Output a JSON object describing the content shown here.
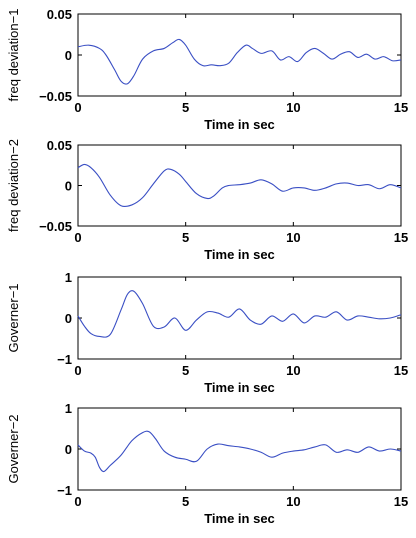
{
  "chart_data": [
    {
      "type": "line",
      "ylabel": "freq deviation−1",
      "xlabel": "Time in sec",
      "xlim": [
        0,
        15
      ],
      "ylim": [
        -0.05,
        0.05
      ],
      "xticks": [
        0,
        5,
        10,
        15
      ],
      "xtick_labels": [
        "0",
        "5",
        "10",
        "15"
      ],
      "yticks": [
        -0.05,
        0,
        0.05
      ],
      "ytick_labels": [
        "−0.05",
        "0",
        "0.05"
      ],
      "grid": false,
      "series": [
        {
          "color": "#3a4fc4",
          "x": [
            0,
            0.5,
            1.0,
            1.3,
            1.7,
            2.0,
            2.3,
            2.6,
            3.0,
            3.5,
            4.0,
            4.4,
            4.7,
            5.0,
            5.4,
            5.8,
            6.2,
            6.6,
            7.0,
            7.4,
            7.8,
            8.1,
            8.5,
            9.0,
            9.4,
            9.8,
            10.2,
            10.6,
            11.0,
            11.4,
            11.8,
            12.2,
            12.6,
            13.0,
            13.4,
            13.8,
            14.2,
            14.6,
            15.0
          ],
          "y": [
            0.01,
            0.012,
            0.008,
            0.0,
            -0.018,
            -0.032,
            -0.035,
            -0.025,
            -0.005,
            0.005,
            0.008,
            0.015,
            0.019,
            0.012,
            -0.005,
            -0.013,
            -0.012,
            -0.013,
            -0.01,
            0.003,
            0.012,
            0.008,
            0.002,
            0.005,
            -0.006,
            -0.002,
            -0.008,
            0.003,
            0.008,
            0.002,
            -0.005,
            0.001,
            0.004,
            -0.003,
            0.001,
            -0.005,
            -0.002,
            -0.007,
            -0.006
          ]
        }
      ]
    },
    {
      "type": "line",
      "ylabel": "freq deviation−2",
      "xlabel": "Time in sec",
      "xlim": [
        0,
        15
      ],
      "ylim": [
        -0.05,
        0.05
      ],
      "xticks": [
        0,
        5,
        10,
        15
      ],
      "xtick_labels": [
        "0",
        "5",
        "10",
        "15"
      ],
      "yticks": [
        -0.05,
        0,
        0.05
      ],
      "ytick_labels": [
        "−0.05",
        "0",
        "0.05"
      ],
      "grid": false,
      "series": [
        {
          "color": "#3a4fc4",
          "x": [
            0,
            0.3,
            0.6,
            1.0,
            1.5,
            2.0,
            2.5,
            3.0,
            3.5,
            4.0,
            4.3,
            4.7,
            5.0,
            5.5,
            6.0,
            6.3,
            6.7,
            7.0,
            7.5,
            8.0,
            8.5,
            9.0,
            9.5,
            10.0,
            10.5,
            11.0,
            11.5,
            12.0,
            12.5,
            13.0,
            13.5,
            14.0,
            14.5,
            15.0
          ],
          "y": [
            0.022,
            0.026,
            0.022,
            0.01,
            -0.012,
            -0.025,
            -0.024,
            -0.015,
            0.002,
            0.018,
            0.02,
            0.014,
            0.005,
            -0.01,
            -0.016,
            -0.013,
            -0.003,
            0.0,
            0.001,
            0.003,
            0.007,
            0.002,
            -0.007,
            -0.003,
            -0.003,
            -0.006,
            -0.003,
            0.002,
            0.003,
            0.0,
            0.001,
            -0.004,
            0.001,
            -0.003
          ]
        }
      ]
    },
    {
      "type": "line",
      "ylabel": "Governer−1",
      "xlabel": "Time in sec",
      "xlim": [
        0,
        15
      ],
      "ylim": [
        -1,
        1
      ],
      "xticks": [
        0,
        5,
        10,
        15
      ],
      "xtick_labels": [
        "0",
        "5",
        "10",
        "15"
      ],
      "yticks": [
        -1,
        0,
        1
      ],
      "ytick_labels": [
        "−1",
        "0",
        "1"
      ],
      "grid": false,
      "series": [
        {
          "color": "#3a4fc4",
          "x": [
            0,
            0.3,
            0.6,
            1.0,
            1.5,
            2.0,
            2.3,
            2.6,
            3.0,
            3.5,
            4.0,
            4.5,
            5.0,
            5.5,
            6.0,
            6.5,
            7.0,
            7.5,
            8.0,
            8.5,
            9.0,
            9.5,
            10.0,
            10.5,
            11.0,
            11.5,
            12.0,
            12.5,
            13.0,
            13.5,
            14.0,
            14.5,
            15.0
          ],
          "y": [
            0.05,
            -0.2,
            -0.38,
            -0.45,
            -0.4,
            0.2,
            0.58,
            0.65,
            0.35,
            -0.2,
            -0.22,
            0.0,
            -0.3,
            -0.05,
            0.15,
            0.12,
            0.02,
            0.22,
            -0.05,
            -0.15,
            0.05,
            -0.08,
            0.1,
            -0.12,
            0.05,
            0.02,
            0.15,
            -0.05,
            0.05,
            0.02,
            -0.02,
            0.0,
            0.08
          ]
        }
      ]
    },
    {
      "type": "line",
      "ylabel": "Governer−2",
      "xlabel": "Time in sec",
      "xlim": [
        0,
        15
      ],
      "ylim": [
        -1,
        1
      ],
      "xticks": [
        0,
        5,
        10,
        15
      ],
      "xtick_labels": [
        "0",
        "5",
        "10",
        "15"
      ],
      "yticks": [
        -1,
        0,
        1
      ],
      "ytick_labels": [
        "−1",
        "0",
        "1"
      ],
      "grid": false,
      "series": [
        {
          "color": "#3a4fc4",
          "x": [
            0,
            0.3,
            0.6,
            0.8,
            1.0,
            1.2,
            1.5,
            2.0,
            2.5,
            3.0,
            3.3,
            3.6,
            4.0,
            4.5,
            5.0,
            5.5,
            6.0,
            6.5,
            7.0,
            7.5,
            8.0,
            8.5,
            9.0,
            9.5,
            10.0,
            10.5,
            11.0,
            11.5,
            12.0,
            12.5,
            13.0,
            13.5,
            14.0,
            14.5,
            15.0
          ],
          "y": [
            0.1,
            -0.05,
            -0.1,
            -0.2,
            -0.45,
            -0.55,
            -0.4,
            -0.15,
            0.2,
            0.4,
            0.42,
            0.25,
            -0.05,
            -0.2,
            -0.25,
            -0.3,
            0.0,
            0.12,
            0.08,
            0.05,
            0.0,
            -0.08,
            -0.2,
            -0.1,
            -0.05,
            -0.02,
            0.05,
            0.1,
            -0.08,
            -0.02,
            -0.08,
            0.05,
            -0.05,
            0.0,
            -0.05
          ]
        }
      ]
    }
  ]
}
